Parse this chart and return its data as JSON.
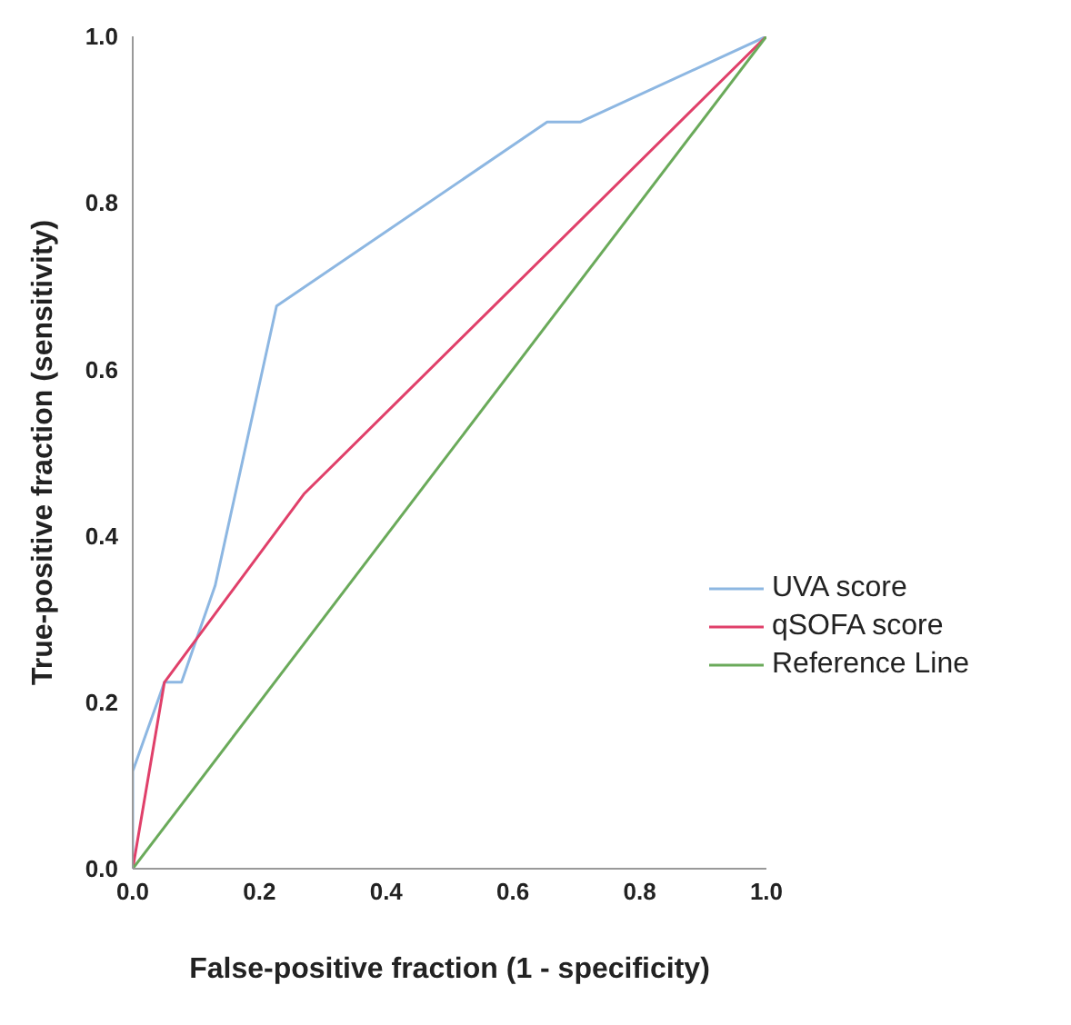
{
  "chart_data": {
    "type": "line",
    "xlabel": "False-positive fraction (1 - specificity)",
    "ylabel": "True-positive fraction (sensitivity)",
    "xlim": [
      0,
      1
    ],
    "ylim": [
      0,
      1
    ],
    "xticks": [
      {
        "value": 0,
        "label": "0.0"
      },
      0.2,
      0.4,
      0.6,
      0.8,
      {
        "value": 1,
        "label": "1.0"
      }
    ],
    "yticks": [
      {
        "value": 0,
        "label": "0.0"
      },
      0.2,
      0.4,
      0.6,
      0.8,
      {
        "value": 1,
        "label": "1.0"
      }
    ],
    "grid": false,
    "legend": "right",
    "marker": "none",
    "line_style": "solid",
    "series": [
      {
        "name": "UVA score",
        "color": "#8db7e2",
        "x": [
          0,
          0,
          0.05,
          0.077,
          0.13,
          0.227,
          0.654,
          0.706,
          1
        ],
        "values": [
          0,
          0.117,
          0.224,
          0.224,
          0.34,
          0.676,
          0.897,
          0.897,
          1
        ]
      },
      {
        "name": "qSOFA score",
        "color": "#e0406a",
        "x": [
          0,
          0.05,
          0.27,
          1
        ],
        "values": [
          0,
          0.224,
          0.45,
          1
        ]
      },
      {
        "name": "Reference Line",
        "color": "#6aaa5a",
        "x": [
          0,
          1
        ],
        "values": [
          0,
          1
        ]
      }
    ]
  }
}
